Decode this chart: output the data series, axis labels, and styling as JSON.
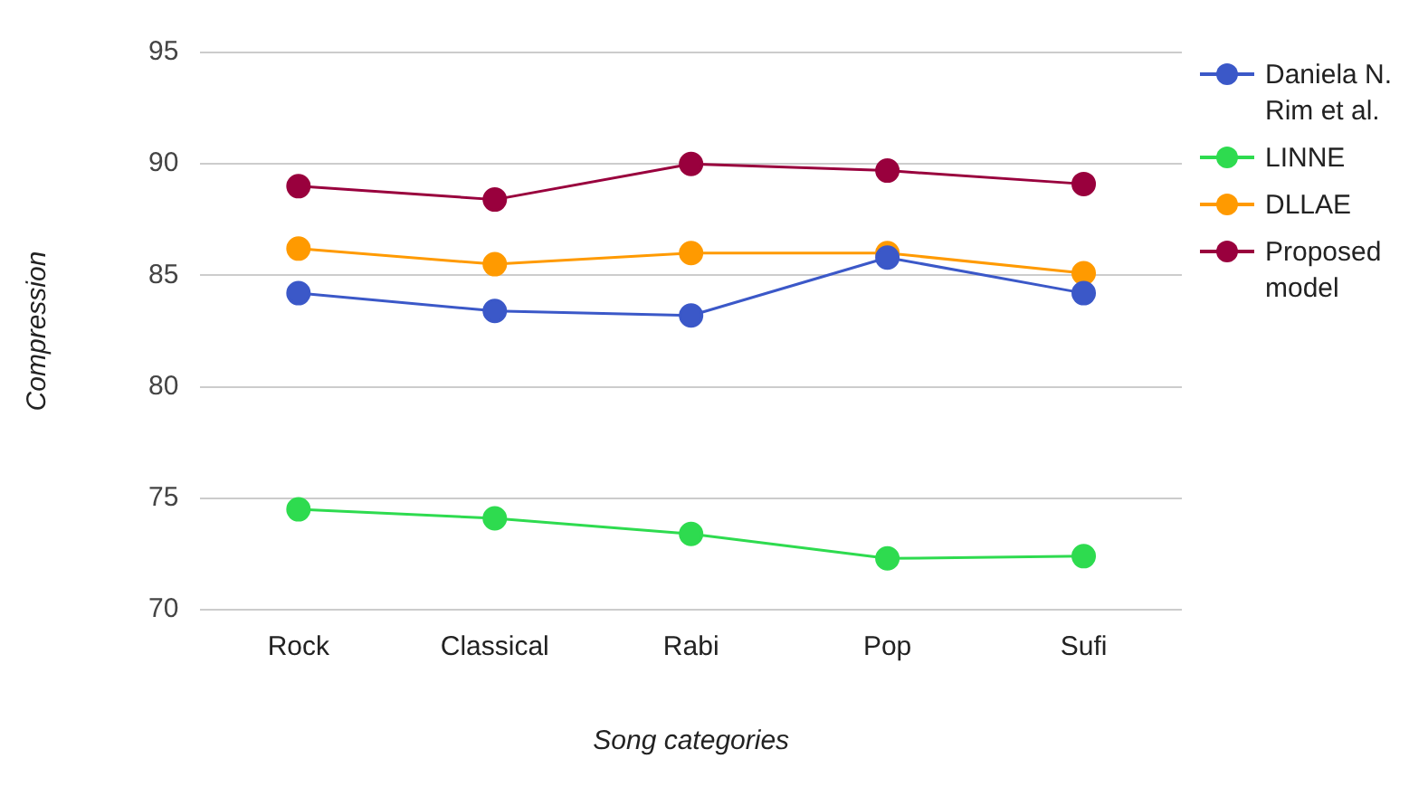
{
  "chart_data": {
    "type": "line",
    "xlabel": "Song categories",
    "ylabel": "Compression",
    "categories": [
      "Rock",
      "Classical",
      "Rabi",
      "Pop",
      "Sufi"
    ],
    "series": [
      {
        "name": "Daniela N. Rim et al.",
        "color": "#3b58c8",
        "values": [
          84.2,
          83.4,
          83.2,
          85.8,
          84.2
        ]
      },
      {
        "name": "LINNE",
        "color": "#2edb4f",
        "values": [
          74.5,
          74.1,
          73.4,
          72.3,
          72.4
        ]
      },
      {
        "name": "DLLAE",
        "color": "#ff9a00",
        "values": [
          86.2,
          85.5,
          86.0,
          86.0,
          85.1
        ]
      },
      {
        "name": "Proposed model",
        "color": "#99003d",
        "values": [
          89.0,
          88.4,
          90.0,
          89.7,
          89.1
        ]
      }
    ],
    "ylim": [
      70,
      95
    ],
    "yticks": [
      70,
      75,
      80,
      85,
      90,
      95
    ],
    "grid": "y",
    "legend": "right",
    "marker": "circle"
  }
}
